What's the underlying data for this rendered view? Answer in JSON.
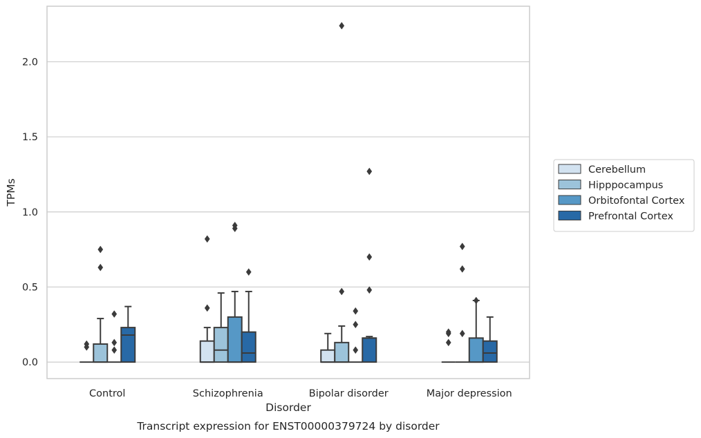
{
  "chart_data": {
    "type": "boxplot",
    "caption": "Transcript expression for ENST00000379724 by disorder",
    "xlabel": "Disorder",
    "ylabel": "TPMs",
    "ylim": [
      -0.11,
      2.37
    ],
    "yticks": [
      0.0,
      0.5,
      1.0,
      1.5,
      2.0
    ],
    "ytick_labels": [
      "0.0",
      "0.5",
      "1.0",
      "1.5",
      "2.0"
    ],
    "grid": "horizontal",
    "legend_position": "right",
    "categories": [
      "Control",
      "Schizophrenia",
      "Bipolar disorder",
      "Major depression"
    ],
    "series": [
      {
        "name": "Cerebellum",
        "color": "#d2e2f0",
        "boxes": [
          {
            "q1": 0,
            "median": 0,
            "q3": 0,
            "whisker_low": 0,
            "whisker_high": 0,
            "outliers": [
              0.1,
              0.12
            ]
          },
          {
            "q1": 0,
            "median": 0,
            "q3": 0.14,
            "whisker_low": 0,
            "whisker_high": 0.23,
            "outliers": [
              0.36,
              0.82
            ]
          },
          {
            "q1": 0,
            "median": 0,
            "q3": 0.08,
            "whisker_low": 0,
            "whisker_high": 0.19,
            "outliers": []
          },
          {
            "q1": 0,
            "median": 0,
            "q3": 0,
            "whisker_low": 0,
            "whisker_high": 0,
            "outliers": [
              0.13,
              0.19,
              0.2
            ]
          }
        ]
      },
      {
        "name": "Hipppocampus",
        "color": "#9cc3da",
        "boxes": [
          {
            "q1": 0,
            "median": 0,
            "q3": 0.12,
            "whisker_low": 0,
            "whisker_high": 0.29,
            "outliers": [
              0.63,
              0.75
            ]
          },
          {
            "q1": 0,
            "median": 0.08,
            "q3": 0.23,
            "whisker_low": 0,
            "whisker_high": 0.46,
            "outliers": []
          },
          {
            "q1": 0,
            "median": 0,
            "q3": 0.13,
            "whisker_low": 0,
            "whisker_high": 0.24,
            "outliers": [
              0.47,
              2.24
            ]
          },
          {
            "q1": 0,
            "median": 0,
            "q3": 0,
            "whisker_low": 0,
            "whisker_high": 0,
            "outliers": [
              0.19,
              0.62,
              0.77
            ]
          }
        ]
      },
      {
        "name": "Orbitofontal Cortex",
        "color": "#5698c6",
        "boxes": [
          {
            "q1": 0,
            "median": 0,
            "q3": 0,
            "whisker_low": 0,
            "whisker_high": 0,
            "outliers": [
              0.08,
              0.13,
              0.32
            ]
          },
          {
            "q1": 0,
            "median": 0,
            "q3": 0.3,
            "whisker_low": 0,
            "whisker_high": 0.47,
            "outliers": [
              0.89,
              0.91
            ]
          },
          {
            "q1": 0,
            "median": 0,
            "q3": 0,
            "whisker_low": 0,
            "whisker_high": 0,
            "outliers": [
              0.08,
              0.25,
              0.34
            ]
          },
          {
            "q1": 0,
            "median": 0,
            "q3": 0.16,
            "whisker_low": 0,
            "whisker_high": 0.41,
            "outliers": [
              0.41
            ]
          }
        ]
      },
      {
        "name": "Prefrontal Cortex",
        "color": "#2869a6",
        "boxes": [
          {
            "q1": 0,
            "median": 0.18,
            "q3": 0.23,
            "whisker_low": 0,
            "whisker_high": 0.37,
            "outliers": []
          },
          {
            "q1": 0,
            "median": 0.06,
            "q3": 0.2,
            "whisker_low": 0,
            "whisker_high": 0.47,
            "outliers": [
              0.6
            ]
          },
          {
            "q1": 0,
            "median": 0.16,
            "q3": 0.16,
            "whisker_low": 0,
            "whisker_high": 0.17,
            "outliers": [
              0.48,
              0.7,
              1.27
            ]
          },
          {
            "q1": 0,
            "median": 0.06,
            "q3": 0.14,
            "whisker_low": 0,
            "whisker_high": 0.3,
            "outliers": []
          }
        ]
      }
    ]
  }
}
